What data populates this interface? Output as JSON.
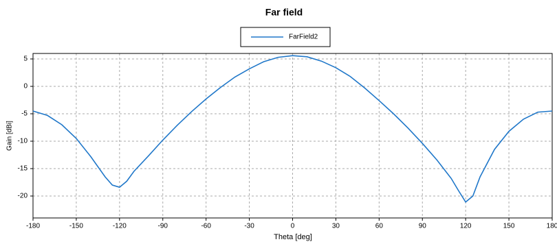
{
  "chart_data": {
    "type": "line",
    "title": "Far field",
    "xlabel": "Theta [deg]",
    "ylabel": "Gain [dBi]",
    "x": [
      -180,
      -170,
      -160,
      -150,
      -140,
      -130,
      -125,
      -120,
      -115,
      -110,
      -100,
      -90,
      -80,
      -70,
      -60,
      -50,
      -40,
      -30,
      -20,
      -10,
      0,
      10,
      20,
      30,
      40,
      50,
      60,
      70,
      80,
      90,
      100,
      110,
      115,
      120,
      125,
      130,
      140,
      150,
      160,
      170,
      180
    ],
    "series": [
      {
        "name": "FarField2",
        "color": "#1f77c9",
        "values": [
          -4.5,
          -5.3,
          -7,
          -9.5,
          -12.8,
          -16.5,
          -18,
          -18.4,
          -17.3,
          -15.5,
          -12.7,
          -9.8,
          -7.1,
          -4.6,
          -2.3,
          -0.2,
          1.7,
          3.2,
          4.5,
          5.3,
          5.6,
          5.4,
          4.6,
          3.4,
          1.8,
          -0.3,
          -2.6,
          -5,
          -7.6,
          -10.4,
          -13.4,
          -16.8,
          -19,
          -21.1,
          -20,
          -16.5,
          -11.5,
          -8.2,
          -6,
          -4.7,
          -4.5
        ]
      }
    ],
    "xlim": [
      -180,
      180
    ],
    "xticks": [
      -180,
      -150,
      -120,
      -90,
      -60,
      -30,
      0,
      30,
      60,
      90,
      120,
      150,
      180
    ],
    "ylim": [
      -24,
      6
    ],
    "yticks": [
      -20,
      -15,
      -10,
      -5,
      0,
      5
    ],
    "grid": true,
    "legend": "top"
  }
}
